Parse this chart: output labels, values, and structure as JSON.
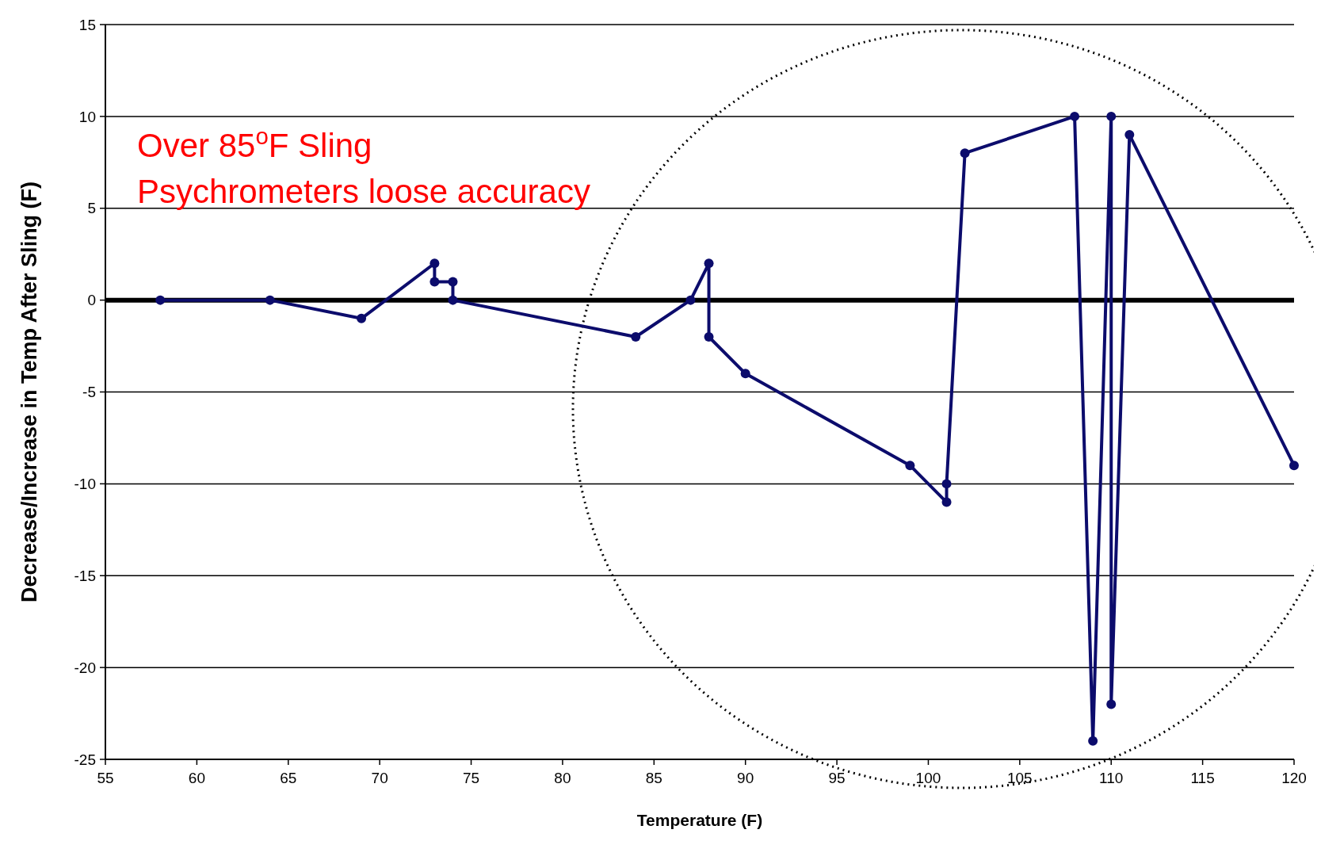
{
  "chart_data": {
    "type": "line",
    "xlabel": "Temperature (F)",
    "ylabel": "Decrease/Increase in Temp After Sling (F)",
    "annotations": [
      "Over 85$^{o}$F Sling\nPsychrometers loose accuracy"
    ],
    "series": [
      {
        "color": "#0c0c6c",
        "x": [
          58,
          64,
          69,
          73,
          73,
          74,
          74,
          84,
          87,
          88,
          88,
          90,
          99,
          101,
          101,
          102,
          108,
          109,
          110,
          110,
          111,
          120
        ],
        "values": [
          0,
          0,
          -1,
          2,
          1,
          1,
          0,
          -2,
          0,
          2,
          -2,
          -4,
          -9,
          -11,
          -10,
          8,
          10,
          -24,
          10,
          -22,
          9,
          -9
        ]
      }
    ],
    "xlim": [
      55,
      120
    ],
    "xticks": [
      55,
      60,
      65,
      70,
      75,
      80,
      85,
      90,
      95,
      100,
      105,
      110,
      115,
      120
    ],
    "ylim": [
      -25,
      15
    ],
    "yticks": [
      -25,
      -20,
      -15,
      -10,
      -5,
      0,
      5,
      10,
      15
    ],
    "grid": "y",
    "marker": "circle",
    "line_style": "solid",
    "ref_lines": [
      {
        "axis": "y",
        "value": 0,
        "color": "#000000"
      }
    ]
  }
}
